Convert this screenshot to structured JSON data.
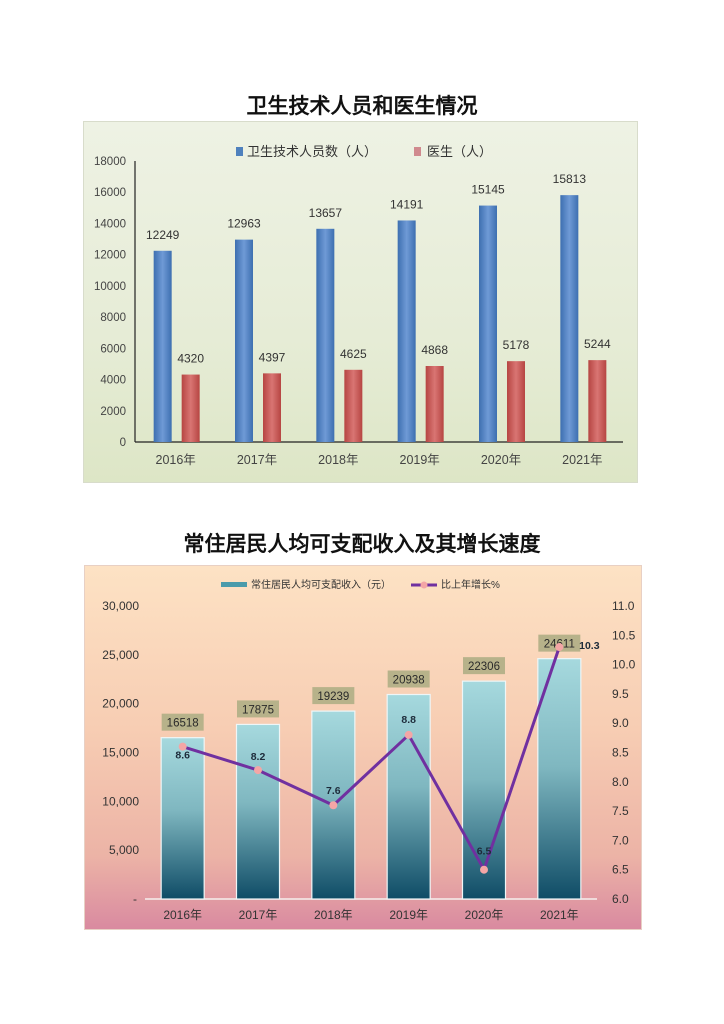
{
  "page": {
    "chart1_title": "卫生技术人员和医生情况",
    "chart2_title": "常住居民人均可支配收入及其增长速度"
  },
  "chart_data": [
    {
      "type": "bar",
      "title": "卫生技术人员和医生情况",
      "categories": [
        "2016年",
        "2017年",
        "2018年",
        "2019年",
        "2020年",
        "2021年"
      ],
      "series": [
        {
          "name": "卫生技术人员数（人）",
          "color": "#4f81bd",
          "values": [
            12249,
            12963,
            13657,
            14191,
            15145,
            15813
          ]
        },
        {
          "name": "医生（人）",
          "color": "#c0504d",
          "values": [
            4320,
            4397,
            4625,
            4868,
            5178,
            5244
          ]
        }
      ],
      "ylim": [
        0,
        18000
      ],
      "yticks": [
        "0",
        "2000",
        "4000",
        "6000",
        "8000",
        "10000",
        "12000",
        "14000",
        "16000",
        "18000"
      ],
      "xlabel": "",
      "ylabel": "",
      "legend_position": "top",
      "grid": false
    },
    {
      "type": "bar+line",
      "title": "常住居民人均可支配收入及其增长速度",
      "categories": [
        "2016年",
        "2017年",
        "2018年",
        "2019年",
        "2020年",
        "2021年"
      ],
      "series": [
        {
          "name": "常住居民人均可支配收入（元）",
          "type": "bar",
          "axis": "left",
          "color": "#4a9bab",
          "values": [
            16518,
            17875,
            19239,
            20938,
            22306,
            24611
          ]
        },
        {
          "name": "比上年增长%",
          "type": "line",
          "axis": "right",
          "color": "#7030a0",
          "marker_color": "#f4a6a6",
          "values": [
            8.6,
            8.2,
            7.6,
            8.8,
            6.5,
            10.3
          ]
        }
      ],
      "ylim_left": [
        0,
        30000
      ],
      "yticks_left": [
        "-",
        "5,000",
        "10,000",
        "15,000",
        "20,000",
        "25,000",
        "30,000"
      ],
      "ylim_right": [
        6.0,
        11.0
      ],
      "yticks_right": [
        "6.0",
        "6.5",
        "7.0",
        "7.5",
        "8.0",
        "8.5",
        "9.0",
        "9.5",
        "10.0",
        "10.5",
        "11.0"
      ],
      "legend_position": "top",
      "grid": false
    }
  ]
}
